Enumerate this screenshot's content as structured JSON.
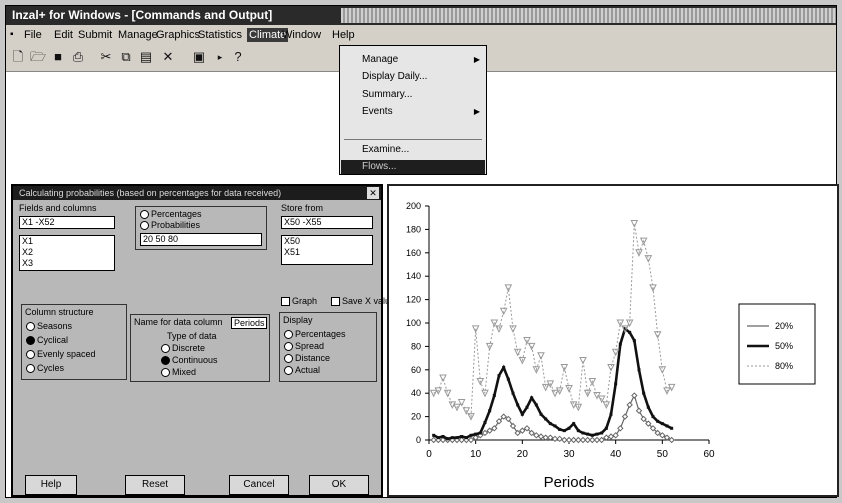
{
  "window": {
    "title": "Inzal+ for Windows - [Commands and Output]"
  },
  "menus": [
    "File",
    "Edit",
    "Submit",
    "Manage",
    "Graphics",
    "Statistics",
    "Climate",
    "Window",
    "Help"
  ],
  "climate_menu": {
    "items": [
      "Manage",
      "Display Daily...",
      "Summary...",
      "Events",
      "Examine...",
      "Flows..."
    ],
    "selected": "Flows..."
  },
  "dialog": {
    "title": "Calculating probabilities (based on percentages for data received)",
    "list_left": {
      "label": "Fields and columns",
      "input": "X1 -X52",
      "items": [
        "X1",
        "X2",
        "X3"
      ]
    },
    "options_group": {
      "opt1": "Percentages",
      "opt2": "Probabilities",
      "value": "20 50 80"
    },
    "list_right": {
      "label": "Store from",
      "input": "X50 -X55",
      "items": [
        "X50",
        "X51"
      ]
    },
    "column_group": {
      "title": "Column structure",
      "options": [
        "Seasons",
        "Cyclical",
        "Evenly spaced",
        "Cycles"
      ]
    },
    "data_group": {
      "title": "Name for data column",
      "value": "Periods",
      "subtitle": "Type of data",
      "options": [
        "Discrete",
        "Continuous",
        "Mixed"
      ]
    },
    "display_group": {
      "check1": "Graph",
      "check2": "Save X values",
      "title": "Display",
      "options": [
        "Percentages",
        "Spread",
        "Distance",
        "Actual"
      ]
    },
    "buttons": [
      "Help",
      "Reset",
      "Cancel",
      "OK"
    ]
  },
  "chart_data": {
    "type": "line",
    "xlabel": "Periods",
    "ylabel": "",
    "xlim": [
      0,
      60
    ],
    "ylim": [
      0,
      200
    ],
    "xticks": [
      0,
      10,
      20,
      30,
      40,
      50,
      60
    ],
    "yticks": [
      0,
      20,
      40,
      60,
      80,
      100,
      120,
      140,
      160,
      180,
      200
    ],
    "x": [
      1,
      2,
      3,
      4,
      5,
      6,
      7,
      8,
      9,
      10,
      11,
      12,
      13,
      14,
      15,
      16,
      17,
      18,
      19,
      20,
      21,
      22,
      23,
      24,
      25,
      26,
      27,
      28,
      29,
      30,
      31,
      32,
      33,
      34,
      35,
      36,
      37,
      38,
      39,
      40,
      41,
      42,
      43,
      44,
      45,
      46,
      47,
      48,
      49,
      50,
      51,
      52
    ],
    "series": [
      {
        "name": "20%",
        "color": "#666666",
        "values": [
          0,
          0,
          0,
          0,
          0,
          0,
          0,
          0,
          0,
          2,
          4,
          6,
          8,
          10,
          16,
          20,
          18,
          12,
          6,
          8,
          10,
          6,
          4,
          3,
          2,
          2,
          1,
          1,
          0,
          0,
          0,
          0,
          0,
          0,
          0,
          0,
          0,
          2,
          3,
          4,
          10,
          20,
          30,
          38,
          25,
          18,
          14,
          10,
          6,
          4,
          2,
          0
        ]
      },
      {
        "name": "50%",
        "color": "#111111",
        "values": [
          4,
          2,
          3,
          1,
          2,
          2,
          3,
          2,
          4,
          5,
          6,
          15,
          25,
          38,
          55,
          62,
          52,
          40,
          30,
          22,
          28,
          36,
          30,
          22,
          18,
          14,
          12,
          9,
          8,
          10,
          14,
          8,
          6,
          5,
          4,
          5,
          6,
          10,
          22,
          48,
          82,
          95,
          92,
          85,
          60,
          40,
          28,
          20,
          16,
          14,
          12,
          10
        ]
      },
      {
        "name": "80%",
        "color": "#999999",
        "values": [
          40,
          42,
          53,
          40,
          30,
          28,
          32,
          25,
          20,
          95,
          50,
          40,
          80,
          100,
          95,
          110,
          130,
          95,
          75,
          68,
          85,
          80,
          60,
          72,
          45,
          48,
          40,
          42,
          62,
          44,
          30,
          28,
          68,
          40,
          50,
          38,
          35,
          30,
          62,
          75,
          100,
          95,
          100,
          185,
          160,
          170,
          155,
          130,
          90,
          60,
          42,
          45
        ]
      }
    ]
  }
}
